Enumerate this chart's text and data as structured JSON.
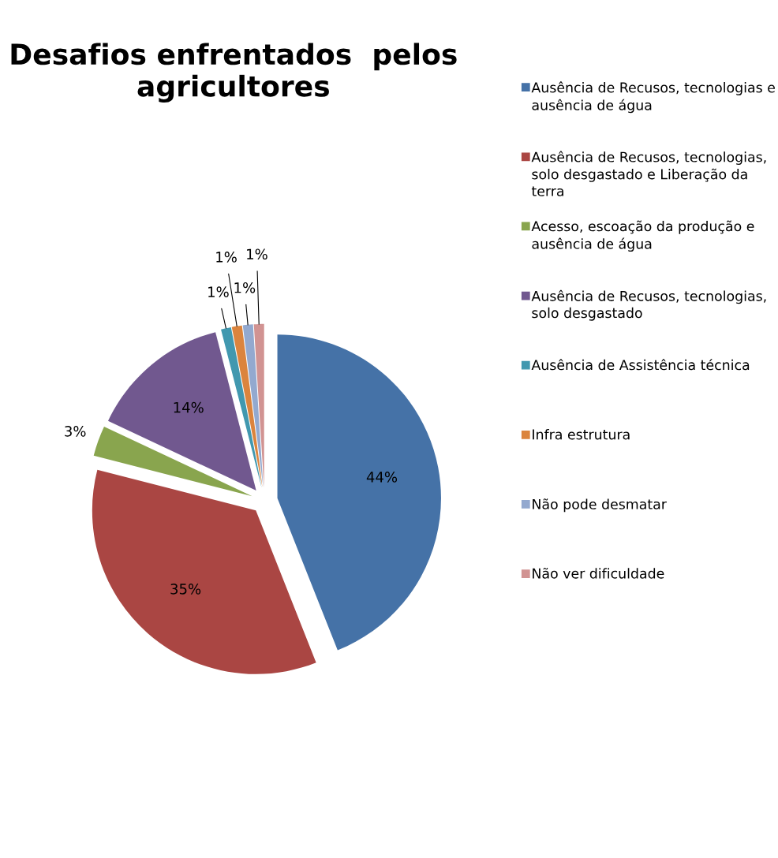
{
  "chart_data": {
    "type": "pie",
    "title": "Desafios enfrentados  pelos agricultores",
    "categories": [
      "Ausência de Recusos, tecnologias e ausência de água",
      "Ausência de Recusos, tecnologias, solo desgastado e Liberação da terra",
      "Acesso, escoação da produção e ausência de água",
      "Ausência de Recusos, tecnologias, solo desgastado",
      "Ausência de Assistência técnica",
      "Infra estrutura",
      "Não pode desmatar",
      "Não ver dificuldade"
    ],
    "values": [
      44,
      35,
      3,
      14,
      1,
      1,
      1,
      1
    ],
    "value_labels": [
      "44%",
      "35%",
      "3%",
      "14%",
      "1%",
      "1%",
      "1%",
      "1%"
    ],
    "colors": [
      "#4572a7",
      "#aa4643",
      "#89a54e",
      "#71588f",
      "#4198af",
      "#db843d",
      "#93a9cf",
      "#d19392"
    ],
    "legend": "right"
  }
}
